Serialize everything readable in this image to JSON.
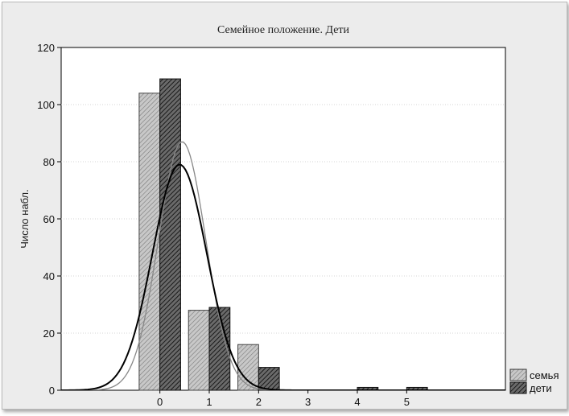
{
  "chart_data": {
    "type": "bar",
    "title": "Семейное положение. Дети",
    "xlabel": "",
    "ylabel": "Число набл.",
    "xlim": [
      -2,
      7
    ],
    "ylim": [
      0,
      120
    ],
    "x_ticks": [
      "0",
      "1",
      "2",
      "3",
      "4",
      "5"
    ],
    "y_ticks": [
      "0",
      "20",
      "40",
      "60",
      "80",
      "100",
      "120"
    ],
    "grid": true,
    "legend_position": "bottom-right",
    "categories": [
      0,
      1,
      2,
      3,
      4,
      5
    ],
    "series": [
      {
        "name": "семья",
        "values": [
          104,
          28,
          16,
          0,
          0,
          0
        ],
        "fill": "#c8c8c8",
        "curve_color": "#888888",
        "curve": {
          "peak": 87,
          "mean": 0.45,
          "sd": 0.48
        }
      },
      {
        "name": "дети",
        "values": [
          109,
          29,
          8,
          0,
          1,
          1
        ],
        "fill": "#555555",
        "curve_color": "#000000",
        "curve": {
          "peak": 79,
          "mean": 0.4,
          "sd": 0.55
        }
      }
    ]
  }
}
